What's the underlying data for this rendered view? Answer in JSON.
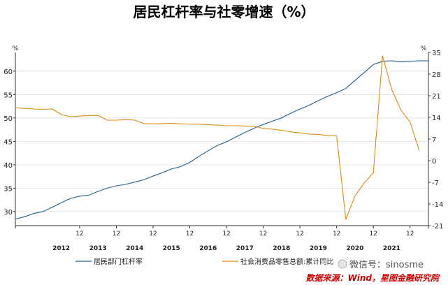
{
  "chart_data": {
    "type": "line",
    "title": "居民杠杆率与社零增速（%）",
    "left_unit": "%",
    "right_unit": "%",
    "ylim_left": [
      27,
      64
    ],
    "ylim_right": [
      -21,
      35
    ],
    "left_ticks": [
      30,
      35,
      40,
      45,
      50,
      55,
      60
    ],
    "right_ticks": [
      -21,
      -14,
      -7,
      0,
      7,
      14,
      21,
      28,
      35
    ],
    "x_month_label": "12",
    "x_years": [
      "2012",
      "2013",
      "2014",
      "2015",
      "2016",
      "2017",
      "2018",
      "2019",
      "2020",
      "2021"
    ],
    "series": [
      {
        "name": "居民部门杠杆率",
        "axis": "left",
        "color": "#1f5f8b",
        "points": [
          [
            2011.25,
            28.4
          ],
          [
            2011.5,
            28.9
          ],
          [
            2011.75,
            29.6
          ],
          [
            2012.0,
            30.0
          ],
          [
            2012.25,
            30.9
          ],
          [
            2012.5,
            31.9
          ],
          [
            2012.75,
            32.8
          ],
          [
            2013.0,
            33.3
          ],
          [
            2013.25,
            33.5
          ],
          [
            2013.5,
            34.3
          ],
          [
            2013.75,
            35.0
          ],
          [
            2014.0,
            35.5
          ],
          [
            2014.25,
            35.8
          ],
          [
            2014.5,
            36.3
          ],
          [
            2014.75,
            36.8
          ],
          [
            2015.0,
            37.6
          ],
          [
            2015.25,
            38.3
          ],
          [
            2015.5,
            39.1
          ],
          [
            2015.75,
            39.6
          ],
          [
            2016.0,
            40.5
          ],
          [
            2016.25,
            41.8
          ],
          [
            2016.5,
            43.0
          ],
          [
            2016.75,
            44.1
          ],
          [
            2017.0,
            44.9
          ],
          [
            2017.25,
            45.9
          ],
          [
            2017.5,
            46.9
          ],
          [
            2017.75,
            47.8
          ],
          [
            2018.0,
            48.6
          ],
          [
            2018.25,
            49.3
          ],
          [
            2018.5,
            50.0
          ],
          [
            2018.75,
            51.0
          ],
          [
            2019.0,
            51.9
          ],
          [
            2019.25,
            52.7
          ],
          [
            2019.5,
            53.7
          ],
          [
            2019.75,
            54.6
          ],
          [
            2020.0,
            55.4
          ],
          [
            2020.25,
            56.3
          ],
          [
            2020.5,
            58.0
          ],
          [
            2020.75,
            59.7
          ],
          [
            2021.0,
            61.4
          ],
          [
            2021.25,
            62.1
          ],
          [
            2021.5,
            62.2
          ],
          [
            2021.75,
            62.0
          ],
          [
            2022.0,
            62.1
          ],
          [
            2022.25,
            62.2
          ],
          [
            2022.5,
            62.2
          ]
        ]
      },
      {
        "name": "社会消费品零售总额:累计同比",
        "axis": "right",
        "color": "#e08a16",
        "points": [
          [
            2011.25,
            17.1
          ],
          [
            2011.5,
            16.9
          ],
          [
            2011.75,
            16.7
          ],
          [
            2012.0,
            16.6
          ],
          [
            2012.25,
            16.7
          ],
          [
            2012.5,
            14.9
          ],
          [
            2012.75,
            14.2
          ],
          [
            2013.0,
            14.4
          ],
          [
            2013.25,
            14.6
          ],
          [
            2013.5,
            14.6
          ],
          [
            2013.75,
            13.1
          ],
          [
            2014.0,
            13.1
          ],
          [
            2014.25,
            13.3
          ],
          [
            2014.5,
            13.1
          ],
          [
            2014.75,
            12.0
          ],
          [
            2015.0,
            11.9
          ],
          [
            2015.25,
            12.0
          ],
          [
            2015.5,
            12.1
          ],
          [
            2015.75,
            11.9
          ],
          [
            2016.0,
            11.8
          ],
          [
            2016.25,
            11.8
          ],
          [
            2016.5,
            11.6
          ],
          [
            2016.75,
            11.5
          ],
          [
            2017.0,
            11.3
          ],
          [
            2017.25,
            11.3
          ],
          [
            2017.5,
            11.2
          ],
          [
            2017.75,
            11.1
          ],
          [
            2018.0,
            10.4
          ],
          [
            2018.25,
            10.2
          ],
          [
            2018.5,
            9.8
          ],
          [
            2018.75,
            9.3
          ],
          [
            2019.0,
            9.0
          ],
          [
            2019.25,
            8.6
          ],
          [
            2019.5,
            8.5
          ],
          [
            2019.75,
            8.1
          ],
          [
            2020.0,
            8.0
          ],
          [
            2020.25,
            -19.0
          ],
          [
            2020.5,
            -11.4
          ],
          [
            2020.75,
            -7.2
          ],
          [
            2021.0,
            -3.9
          ],
          [
            2021.25,
            33.9
          ],
          [
            2021.5,
            23.0
          ],
          [
            2021.75,
            16.4
          ],
          [
            2022.0,
            12.5
          ],
          [
            2022.25,
            3.3
          ]
        ]
      }
    ],
    "source": "数据来源：Wind，星图金融研究院",
    "watermark": "微信号：sinosme"
  }
}
